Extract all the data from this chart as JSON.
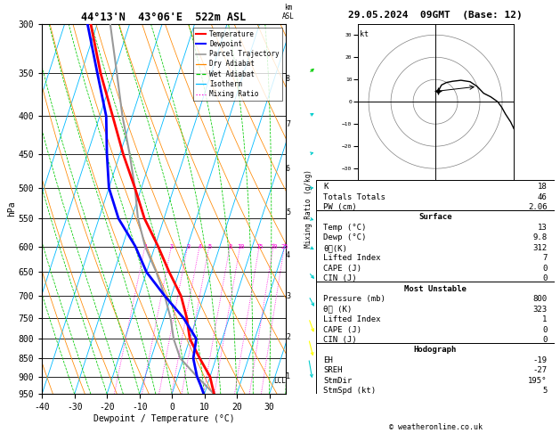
{
  "title": "44°13'N  43°06'E  522m ASL",
  "date_str": "29.05.2024  09GMT  (Base: 12)",
  "xlabel": "Dewpoint / Temperature (°C)",
  "ylabel_left": "hPa",
  "pressure_levels": [
    300,
    350,
    400,
    450,
    500,
    550,
    600,
    650,
    700,
    750,
    800,
    850,
    900,
    950
  ],
  "tmin": -40,
  "tmax": 35,
  "pmin": 300,
  "pmax": 950,
  "skew_slope": 37.0,
  "isotherms_color": "#00bbff",
  "dry_adiabat_color": "#ff8800",
  "wet_adiabat_color": "#00cc00",
  "mixing_ratio_color": "#ff00dd",
  "temperature_color": "#ff0000",
  "dewpoint_color": "#0000ff",
  "parcel_color": "#999999",
  "temp_data": {
    "pressure": [
      950,
      925,
      900,
      850,
      800,
      750,
      700,
      650,
      600,
      550,
      500,
      450,
      400,
      350,
      300
    ],
    "temp": [
      13,
      11.5,
      10,
      5,
      0,
      -3,
      -7,
      -13,
      -19,
      -26,
      -32,
      -39,
      -46,
      -54,
      -62
    ]
  },
  "dewp_data": {
    "pressure": [
      950,
      925,
      900,
      850,
      800,
      750,
      700,
      650,
      600,
      550,
      500,
      450,
      400,
      350,
      300
    ],
    "dewp": [
      9.8,
      8,
      6,
      3,
      2,
      -4,
      -12,
      -20,
      -26,
      -34,
      -40,
      -44,
      -48,
      -55,
      -63
    ]
  },
  "parcel_data": {
    "pressure": [
      950,
      900,
      850,
      800,
      750,
      700,
      650,
      600,
      550,
      500,
      450,
      400,
      350,
      300
    ],
    "temp": [
      13,
      6,
      -1,
      -5,
      -8,
      -12,
      -17,
      -23,
      -28,
      -32,
      -37,
      -43,
      -49,
      -56
    ]
  },
  "mixing_ratio_lines": [
    1,
    2,
    3,
    4,
    5,
    8,
    10,
    15,
    20,
    25
  ],
  "lcl_pressure": 912,
  "wind_symbols": {
    "pressure": [
      950,
      900,
      850,
      800,
      750,
      700,
      650,
      600,
      550,
      500,
      450,
      400,
      350,
      300
    ],
    "colors": [
      "#00cccc",
      "#00cccc",
      "#00cccc",
      "#ffff00",
      "#ffff00",
      "#00cccc",
      "#00cccc",
      "#00cccc",
      "#00cccc",
      "#00cccc",
      "#00cccc",
      "#00cccc",
      "#00cc00",
      "#00cc00"
    ],
    "speed_kt": [
      5,
      8,
      10,
      12,
      15,
      18,
      20,
      22,
      25,
      28,
      30,
      32,
      35,
      38
    ],
    "direction": [
      195,
      200,
      210,
      220,
      230,
      240,
      250,
      260,
      265,
      270,
      275,
      280,
      285,
      290
    ]
  },
  "km_labels": [
    1,
    2,
    3,
    4,
    5,
    6,
    7,
    8
  ],
  "stats": {
    "K": 18,
    "Totals_Totals": 46,
    "PW_cm": 2.06,
    "Surface_Temp": 13,
    "Surface_Dewp": 9.8,
    "Surface_theta_e": 312,
    "Surface_Lifted_Index": 7,
    "Surface_CAPE": 0,
    "Surface_CIN": 0,
    "MU_Pressure": 800,
    "MU_theta_e": 323,
    "MU_Lifted_Index": 1,
    "MU_CAPE": 0,
    "MU_CIN": 0,
    "EH": -19,
    "SREH": -27,
    "StmDir": 195,
    "StmSpd": 5
  }
}
